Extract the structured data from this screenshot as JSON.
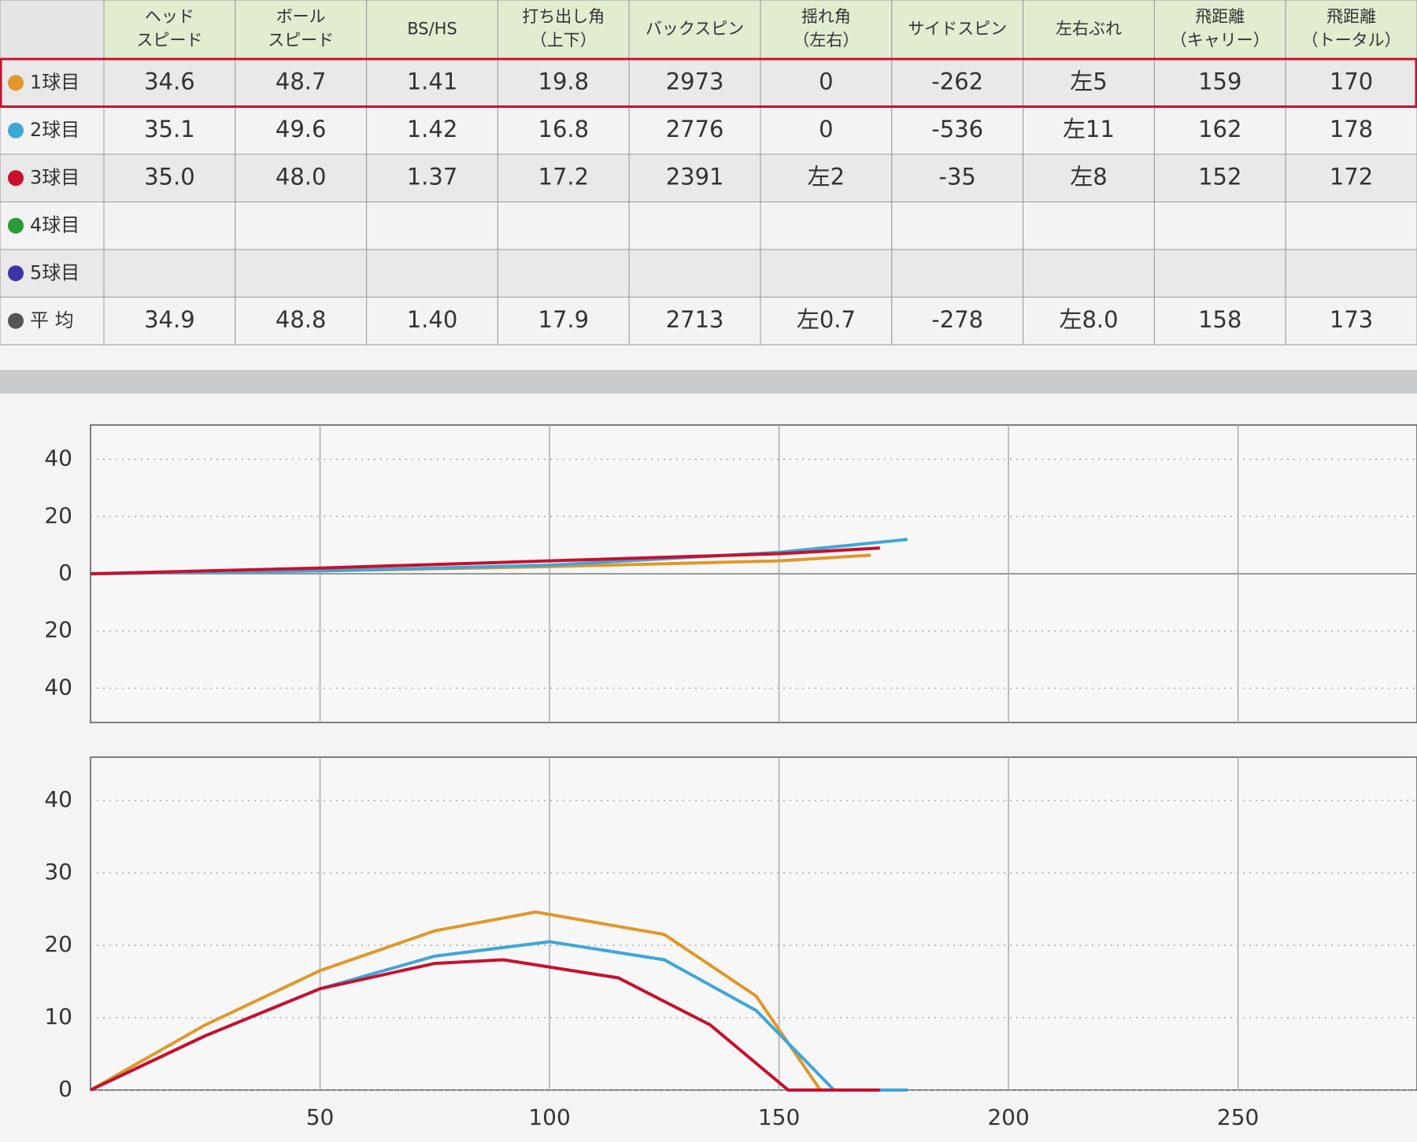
{
  "table": {
    "header": [
      [
        "ヘッド",
        "スピード"
      ],
      [
        "ボール",
        "スピード"
      ],
      [
        "BS/HS"
      ],
      [
        "打ち出し角",
        "（上下）"
      ],
      [
        "バックスピン"
      ],
      [
        "揺れ角",
        "（左右）"
      ],
      [
        "サイドスピン"
      ],
      [
        "左右ぶれ"
      ],
      [
        "飛距離",
        "（キャリー）"
      ],
      [
        "飛距離",
        "（トータル）"
      ]
    ],
    "rows": [
      {
        "label": "1球目",
        "color": "#e0982a",
        "cells": [
          "34.6",
          "48.7",
          "1.41",
          "19.8",
          "2973",
          "0",
          "-262",
          "左5",
          "159",
          "170"
        ]
      },
      {
        "label": "2球目",
        "color": "#3fa6d8",
        "cells": [
          "35.1",
          "49.6",
          "1.42",
          "16.8",
          "2776",
          "0",
          "-536",
          "左11",
          "162",
          "178"
        ]
      },
      {
        "label": "3球目",
        "color": "#c8102e",
        "cells": [
          "35.0",
          "48.0",
          "1.37",
          "17.2",
          "2391",
          "左2",
          "-35",
          "左8",
          "152",
          "172"
        ]
      },
      {
        "label": "4球目",
        "color": "#2a9a3a",
        "cells": []
      },
      {
        "label": "5球目",
        "color": "#3a35a8",
        "cells": []
      },
      {
        "label": "平 均",
        "color": "#555555",
        "cells": [
          "34.9",
          "48.8",
          "1.40",
          "17.9",
          "2713",
          "左0.7",
          "-278",
          "左8.0",
          "158",
          "173"
        ]
      }
    ]
  },
  "chart_data": [
    {
      "type": "line",
      "xlim": [
        0,
        289
      ],
      "ylim": [
        -52,
        52
      ],
      "xticks": [
        50,
        100,
        150,
        200,
        250
      ],
      "yticks": [
        {
          "value": 40,
          "label": "40"
        },
        {
          "value": 20,
          "label": "20"
        },
        {
          "value": 0,
          "label": "0"
        },
        {
          "value": -20,
          "label": "20"
        },
        {
          "value": -40,
          "label": "40"
        }
      ],
      "grid": true,
      "series": [
        {
          "color": "#e0982a",
          "x": [
            0,
            50,
            100,
            150,
            170
          ],
          "values": [
            0,
            1,
            2.5,
            4.5,
            6.5
          ]
        },
        {
          "color": "#3fa6d8",
          "x": [
            0,
            50,
            100,
            150,
            178
          ],
          "values": [
            0,
            1,
            3,
            7.5,
            12
          ]
        },
        {
          "color": "#c8102e",
          "x": [
            0,
            50,
            100,
            150,
            172
          ],
          "values": [
            0,
            2,
            4.5,
            7,
            9
          ]
        }
      ]
    },
    {
      "type": "line",
      "xlim": [
        0,
        289
      ],
      "ylim": [
        0,
        46
      ],
      "xticks": [
        50,
        100,
        150,
        200,
        250
      ],
      "yticks": [
        0,
        10,
        20,
        30,
        40
      ],
      "grid": true,
      "series": [
        {
          "color": "#e0982a",
          "x": [
            0,
            25,
            50,
            75,
            97,
            125,
            145,
            159,
            170
          ],
          "values": [
            0,
            9,
            16.5,
            22,
            24.6,
            21.5,
            13,
            0,
            0
          ]
        },
        {
          "color": "#3fa6d8",
          "x": [
            0,
            25,
            50,
            75,
            100,
            125,
            145,
            162,
            178
          ],
          "values": [
            0,
            7.5,
            14,
            18.5,
            20.5,
            18,
            11,
            0,
            0
          ]
        },
        {
          "color": "#c8102e",
          "x": [
            0,
            25,
            50,
            75,
            90,
            115,
            135,
            152,
            172
          ],
          "values": [
            0,
            7.5,
            14,
            17.5,
            18,
            15.5,
            9,
            0,
            0
          ]
        }
      ]
    }
  ]
}
